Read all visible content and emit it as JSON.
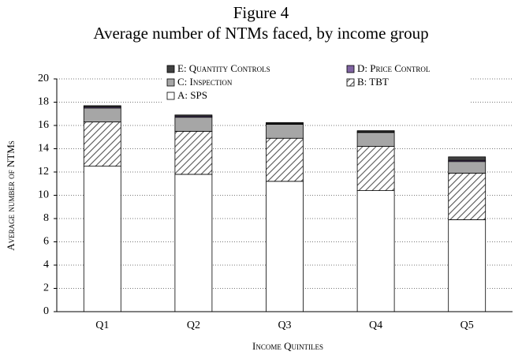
{
  "chart_data": {
    "type": "stacked_bar",
    "title": "Figure 4",
    "subtitle": "Average number of NTMs faced, by income group",
    "x_label": "Income Quintiles",
    "y_label": "Average number of NTMs",
    "categories": [
      "Q1",
      "Q2",
      "Q3",
      "Q4",
      "Q5"
    ],
    "series": [
      {
        "name": "A: SPS",
        "color": "#ffffff",
        "values": [
          12.5,
          11.8,
          11.2,
          10.4,
          7.9
        ]
      },
      {
        "name": "B: TBT",
        "color": "#ffffff",
        "pattern": "hatch",
        "values": [
          3.8,
          3.7,
          3.7,
          3.8,
          4.0
        ]
      },
      {
        "name": "C: Inspection",
        "color": "#a6a6a6",
        "values": [
          1.2,
          1.2,
          1.2,
          1.2,
          1.0
        ]
      },
      {
        "name": "D: Price Control",
        "color": "#8064a2",
        "values": [
          0.1,
          0.1,
          0.05,
          0.05,
          0.1
        ]
      },
      {
        "name": "E: Quantity Controls",
        "color": "#404040",
        "values": [
          0.1,
          0.1,
          0.1,
          0.1,
          0.3
        ]
      }
    ],
    "ylim": [
      0,
      20
    ],
    "yticks": [
      0,
      2,
      4,
      6,
      8,
      10,
      12,
      14,
      16,
      18,
      20
    ],
    "grid": true
  }
}
